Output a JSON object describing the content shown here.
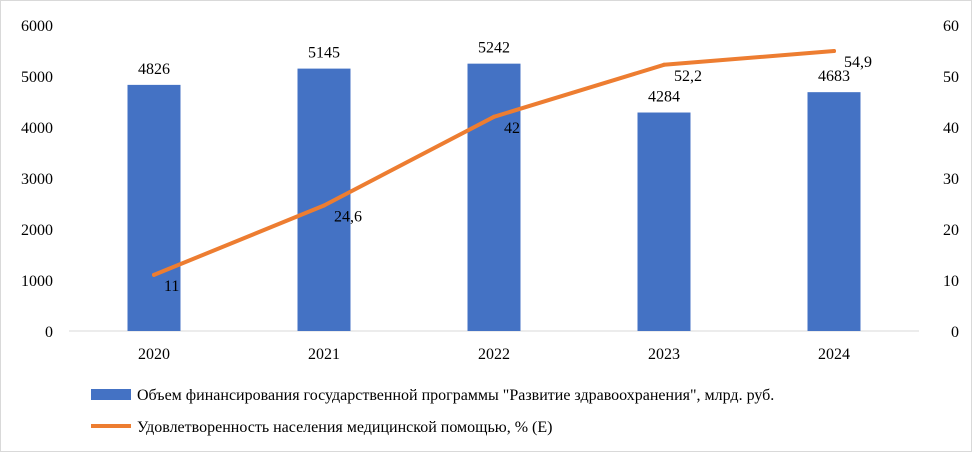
{
  "chart_data": {
    "type": "bar",
    "categories": [
      "2020",
      "2021",
      "2022",
      "2023",
      "2024"
    ],
    "series": [
      {
        "name": "Объем финансирования государственной программы \"Развитие здравоохранения\", млрд. руб.",
        "type": "bar",
        "axis": "left",
        "values": [
          4826,
          5145,
          5242,
          4284,
          4683
        ],
        "labels": [
          "4826",
          "5145",
          "5242",
          "4284",
          "4683"
        ],
        "color": "#4472C4"
      },
      {
        "name": "Удовлетворенность населения медицинской помощью, % (Е)",
        "type": "line",
        "axis": "right",
        "values": [
          11,
          24.6,
          42,
          52.2,
          54.9
        ],
        "labels": [
          "11",
          "24,6",
          "42",
          "52,2",
          "54,9"
        ],
        "color": "#ED7D31"
      }
    ],
    "y_left": {
      "min": 0,
      "max": 6000,
      "ticks": [
        "0",
        "1000",
        "2000",
        "3000",
        "4000",
        "5000",
        "6000"
      ]
    },
    "y_right": {
      "min": 0,
      "max": 60,
      "ticks": [
        "0",
        "10",
        "20",
        "30",
        "40",
        "50",
        "60"
      ]
    },
    "grid": false,
    "legend": "bottom"
  }
}
